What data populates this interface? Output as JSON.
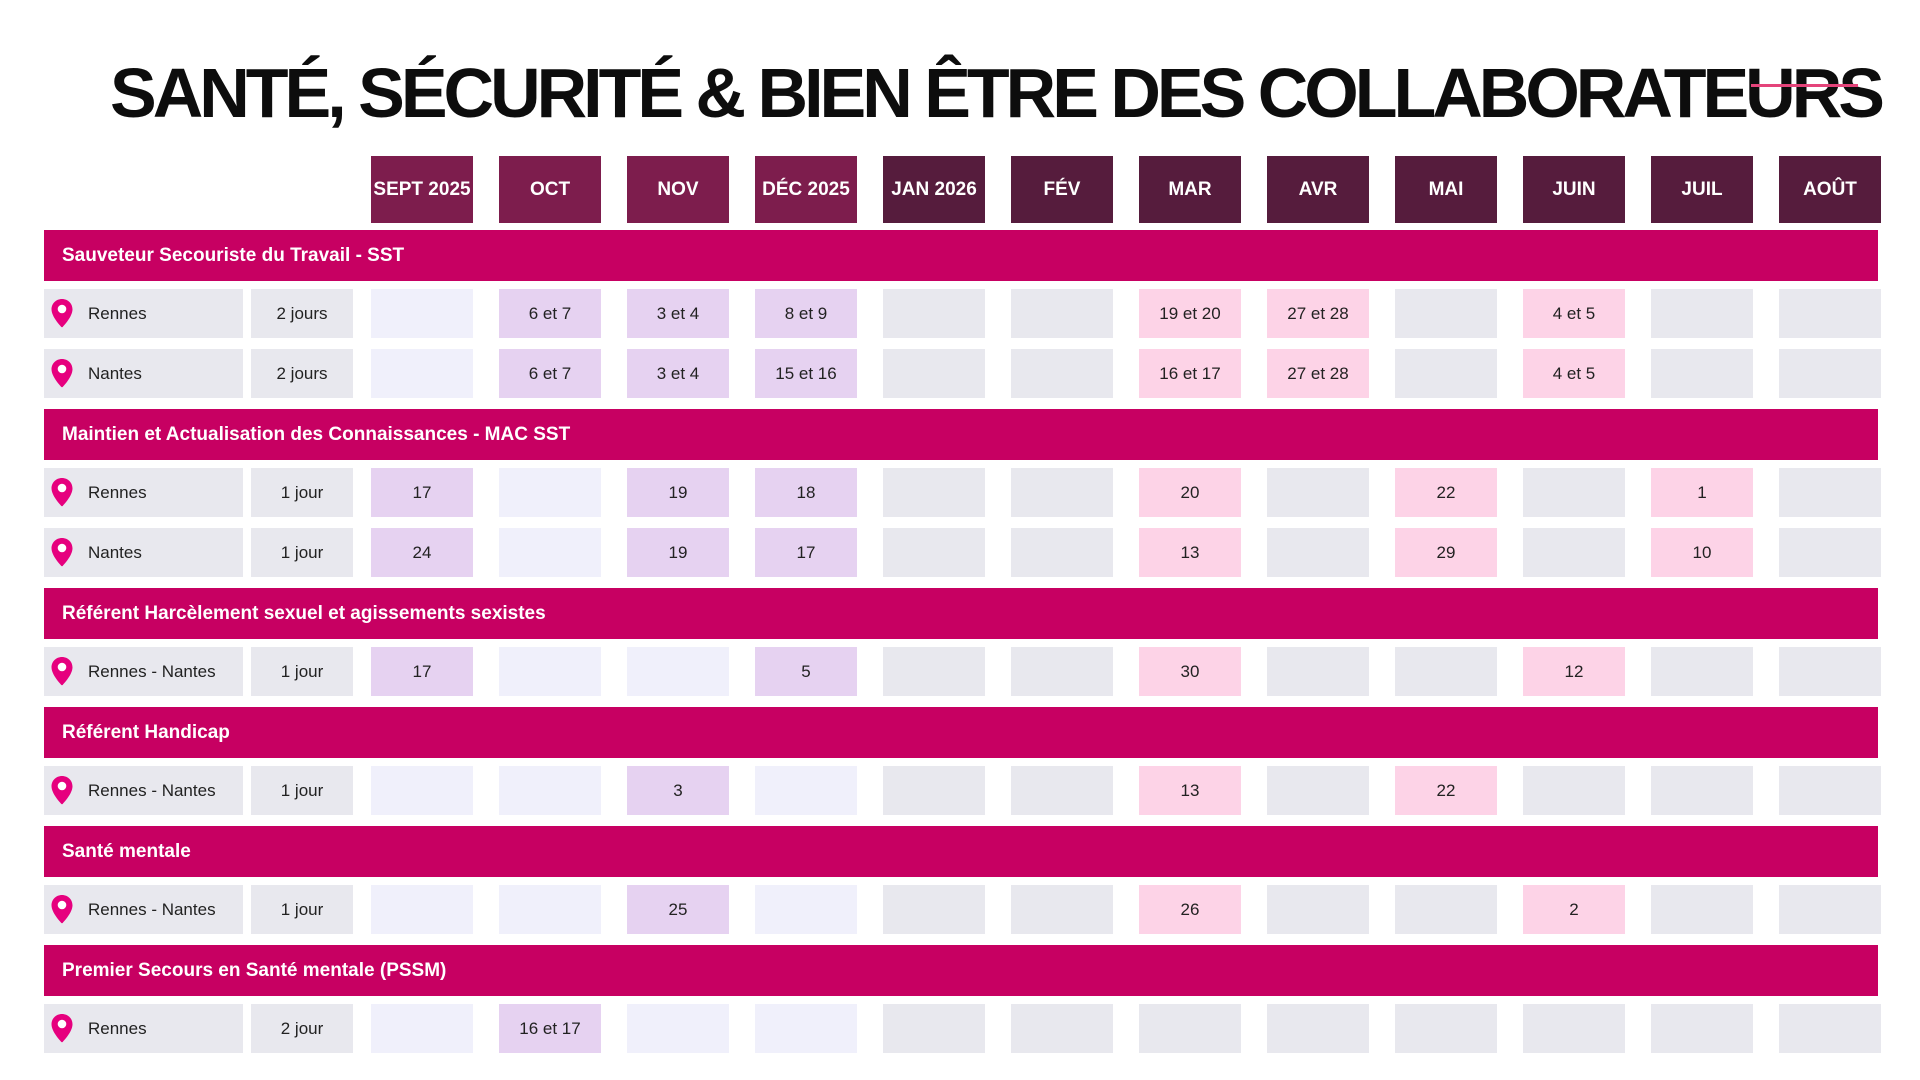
{
  "title": "SANTÉ, SÉCURITÉ & BIEN ÊTRE DES COLLABORATEURS",
  "colors": {
    "title_accent": "#e4447a",
    "section_bar": "#c70062",
    "header_dark": "#561c3d",
    "header_medium": "#7d1d4d",
    "cell_empty_light": "#f0f0fb",
    "cell_empty_gray": "#e8e8ee",
    "cell_purple": "#e6d2f1",
    "cell_pink": "#fdd3e7",
    "pin": "#e6007e"
  },
  "months": [
    {
      "label": "SEPT 2025",
      "shade": "medium"
    },
    {
      "label": "OCT",
      "shade": "medium"
    },
    {
      "label": "NOV",
      "shade": "medium"
    },
    {
      "label": "DÉC 2025",
      "shade": "medium"
    },
    {
      "label": "JAN 2026",
      "shade": "dark"
    },
    {
      "label": "FÉV",
      "shade": "dark"
    },
    {
      "label": "MAR",
      "shade": "dark"
    },
    {
      "label": "AVR",
      "shade": "dark"
    },
    {
      "label": "MAI",
      "shade": "dark"
    },
    {
      "label": "JUIN",
      "shade": "dark"
    },
    {
      "label": "JUIL",
      "shade": "dark"
    },
    {
      "label": "AOÛT",
      "shade": "dark"
    }
  ],
  "pin_icon": "map-pin-icon",
  "sections": [
    {
      "title": "Sauveteur Secouriste du Travail - SST",
      "rows": [
        {
          "location": "Rennes",
          "duration": "2 jours",
          "dates": [
            "",
            "6 et 7",
            "3 et 4",
            "8 et 9",
            "",
            "",
            "19 et 20",
            "27 et 28",
            "",
            "4 et 5",
            "",
            ""
          ]
        },
        {
          "location": "Nantes",
          "duration": "2 jours",
          "dates": [
            "",
            "6 et 7",
            "3 et 4",
            "15 et 16",
            "",
            "",
            "16 et 17",
            "27 et 28",
            "",
            "4 et 5",
            "",
            ""
          ]
        }
      ]
    },
    {
      "title": "Maintien et Actualisation des Connaissances - MAC SST",
      "rows": [
        {
          "location": "Rennes",
          "duration": "1 jour",
          "dates": [
            "17",
            "",
            "19",
            "18",
            "",
            "",
            "20",
            "",
            "22",
            "",
            "1",
            ""
          ]
        },
        {
          "location": "Nantes",
          "duration": "1 jour",
          "dates": [
            "24",
            "",
            "19",
            "17",
            "",
            "",
            "13",
            "",
            "29",
            "",
            "10",
            ""
          ]
        }
      ]
    },
    {
      "title": "Référent Harcèlement sexuel et agissements sexistes",
      "rows": [
        {
          "location": "Rennes - Nantes",
          "duration": "1 jour",
          "dates": [
            "17",
            "",
            "",
            "5",
            "",
            "",
            "30",
            "",
            "",
            "12",
            "",
            ""
          ]
        }
      ]
    },
    {
      "title": "Référent Handicap",
      "rows": [
        {
          "location": "Rennes - Nantes",
          "duration": "1 jour",
          "dates": [
            "",
            "",
            "3",
            "",
            "",
            "",
            "13",
            "",
            "22",
            "",
            "",
            ""
          ]
        }
      ]
    },
    {
      "title": "Santé mentale",
      "rows": [
        {
          "location": "Rennes - Nantes",
          "duration": "1 jour",
          "dates": [
            "",
            "",
            "25",
            "",
            "",
            "",
            "26",
            "",
            "",
            "2",
            "",
            ""
          ]
        }
      ]
    },
    {
      "title": "Premier Secours en Santé mentale (PSSM)",
      "rows": [
        {
          "location": "Rennes",
          "duration": "2 jour",
          "dates": [
            "",
            "16 et 17",
            "",
            "",
            "",
            "",
            "",
            "",
            "",
            "",
            "",
            ""
          ]
        }
      ]
    }
  ]
}
